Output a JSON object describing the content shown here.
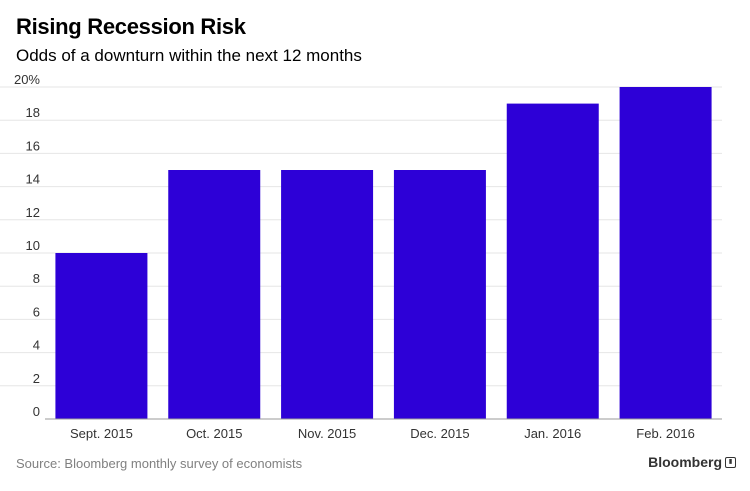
{
  "header": {
    "title": "Rising Recession Risk",
    "subtitle": "Odds of a downturn within the next 12 months"
  },
  "footer": {
    "source": "Source: Bloomberg monthly survey of economists",
    "logo_text": "Bloomberg"
  },
  "colors": {
    "bar": "#2d00d7",
    "grid": "#e6e6e6",
    "axis": "#999999"
  },
  "chart_data": {
    "type": "bar",
    "title": "Rising Recession Risk",
    "subtitle": "Odds of a downturn within the next 12 months",
    "categories": [
      "Sept. 2015",
      "Oct. 2015",
      "Nov. 2015",
      "Dec. 2015",
      "Jan. 2016",
      "Feb. 2016"
    ],
    "values": [
      10,
      15,
      15,
      15,
      19,
      20
    ],
    "ylim": [
      0,
      20
    ],
    "yticks": [
      0,
      2,
      4,
      6,
      8,
      10,
      12,
      14,
      16,
      18,
      20
    ],
    "ytick_labels": [
      "0",
      "2",
      "4",
      "6",
      "8",
      "10",
      "12",
      "14",
      "16",
      "18",
      "20%"
    ],
    "grid": true,
    "xlabel": "",
    "ylabel": ""
  }
}
